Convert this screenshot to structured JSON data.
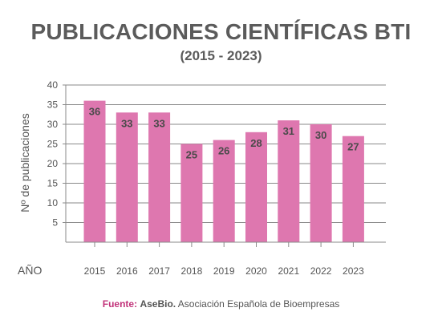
{
  "chart_data": {
    "type": "bar",
    "title": "PUBLICACIONES CIENTÍFICAS BTI",
    "subtitle": "(2015 - 2023)",
    "categories": [
      "2015",
      "2016",
      "2017",
      "2018",
      "2019",
      "2020",
      "2021",
      "2022",
      "2023"
    ],
    "values": [
      36,
      33,
      33,
      25,
      26,
      28,
      31,
      30,
      27
    ],
    "xlabel": "AÑO",
    "ylabel": "Nº de publicaciones",
    "ylim": [
      0,
      40
    ],
    "yticks": [
      5,
      10,
      15,
      20,
      25,
      30,
      35,
      40
    ],
    "grid": true,
    "bar_color": "#de77af",
    "data_labels": true
  },
  "source": {
    "lead": "Fuente:",
    "name": "AseBio.",
    "text": "Asociación Española de Bioempresas"
  }
}
